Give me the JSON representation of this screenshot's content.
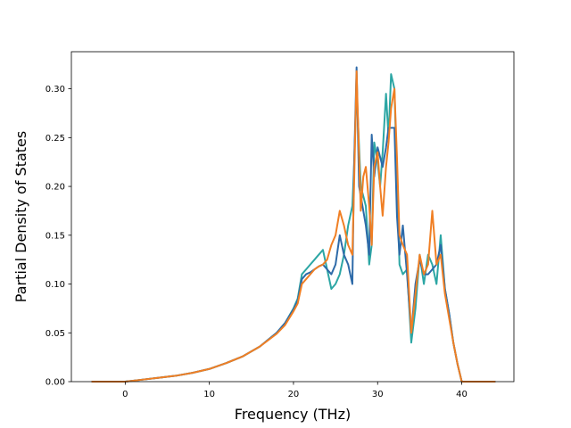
{
  "chart_data": {
    "type": "line",
    "title": "",
    "xlabel": "Frequency (THz)",
    "ylabel": "Partial Density of States",
    "xlim": [
      -6.4,
      46.2
    ],
    "ylim": [
      0.0,
      0.338
    ],
    "xticks": [
      0,
      10,
      20,
      30,
      40
    ],
    "yticks": [
      0.0,
      0.05,
      0.1,
      0.15,
      0.2,
      0.25,
      0.3
    ],
    "ytick_labels": [
      "0.00",
      "0.05",
      "0.10",
      "0.15",
      "0.20",
      "0.25",
      "0.30"
    ],
    "grid": false,
    "legend": "none",
    "series": [
      {
        "color": "#2ca6a4",
        "x": [
          -4,
          0,
          2,
          4,
          6,
          8,
          10,
          12,
          14,
          16,
          18,
          19,
          20,
          20.5,
          21,
          21.5,
          22,
          22.5,
          23,
          23.5,
          24,
          24.5,
          25,
          25.5,
          26,
          26.5,
          27,
          27.2,
          27.5,
          27.8,
          28,
          28.3,
          28.6,
          29,
          29.3,
          29.6,
          30,
          30.3,
          30.6,
          31,
          31.3,
          31.6,
          32,
          32.3,
          32.6,
          33,
          33.5,
          34,
          34.5,
          35,
          35.5,
          36,
          36.5,
          37,
          37.5,
          38,
          38.5,
          39,
          39.5,
          40,
          44
        ],
        "y": [
          0.0,
          0.0,
          0.002,
          0.004,
          0.006,
          0.009,
          0.013,
          0.019,
          0.026,
          0.036,
          0.05,
          0.06,
          0.075,
          0.085,
          0.11,
          0.115,
          0.12,
          0.125,
          0.13,
          0.135,
          0.115,
          0.095,
          0.1,
          0.11,
          0.13,
          0.16,
          0.18,
          0.22,
          0.3,
          0.24,
          0.2,
          0.19,
          0.18,
          0.12,
          0.14,
          0.245,
          0.225,
          0.2,
          0.235,
          0.295,
          0.25,
          0.315,
          0.3,
          0.21,
          0.12,
          0.11,
          0.115,
          0.04,
          0.075,
          0.13,
          0.1,
          0.13,
          0.12,
          0.1,
          0.15,
          0.095,
          0.07,
          0.04,
          0.018,
          0.0,
          0.0
        ]
      },
      {
        "color": "#2e6aa8",
        "x": [
          -4,
          0,
          2,
          4,
          6,
          8,
          10,
          12,
          14,
          16,
          18,
          19,
          20,
          20.5,
          21,
          21.5,
          22,
          22.5,
          23,
          23.5,
          24,
          24.5,
          25,
          25.5,
          26,
          26.5,
          27,
          27.2,
          27.5,
          27.8,
          28,
          28.3,
          28.6,
          29,
          29.3,
          29.6,
          30,
          30.3,
          30.6,
          31,
          31.3,
          31.6,
          32,
          32.3,
          32.6,
          33,
          33.5,
          34,
          34.5,
          35,
          35.5,
          36,
          36.5,
          37,
          37.5,
          38,
          38.5,
          39,
          39.5,
          40,
          44
        ],
        "y": [
          0.0,
          0.0,
          0.002,
          0.004,
          0.006,
          0.009,
          0.013,
          0.019,
          0.026,
          0.036,
          0.05,
          0.06,
          0.074,
          0.083,
          0.105,
          0.11,
          0.112,
          0.115,
          0.118,
          0.12,
          0.115,
          0.11,
          0.12,
          0.15,
          0.13,
          0.12,
          0.1,
          0.22,
          0.322,
          0.2,
          0.19,
          0.175,
          0.16,
          0.13,
          0.253,
          0.21,
          0.24,
          0.23,
          0.22,
          0.24,
          0.26,
          0.26,
          0.26,
          0.17,
          0.13,
          0.16,
          0.11,
          0.05,
          0.1,
          0.125,
          0.11,
          0.11,
          0.115,
          0.12,
          0.14,
          0.095,
          0.07,
          0.04,
          0.018,
          0.0,
          0.0
        ]
      },
      {
        "color": "#f07f24",
        "x": [
          -4,
          0,
          2,
          4,
          6,
          8,
          10,
          12,
          14,
          16,
          18,
          19,
          20,
          20.5,
          21,
          21.5,
          22,
          22.5,
          23,
          23.5,
          24,
          24.5,
          25,
          25.5,
          26,
          26.5,
          27,
          27.2,
          27.5,
          27.8,
          28,
          28.3,
          28.6,
          29,
          29.3,
          29.6,
          30,
          30.3,
          30.6,
          31,
          31.3,
          31.6,
          32,
          32.3,
          32.6,
          33,
          33.5,
          34,
          34.5,
          35,
          35.5,
          36,
          36.5,
          37,
          37.5,
          38,
          38.5,
          39,
          39.5,
          40,
          44
        ],
        "y": [
          0.0,
          0.0,
          0.002,
          0.004,
          0.006,
          0.009,
          0.013,
          0.019,
          0.026,
          0.036,
          0.049,
          0.058,
          0.072,
          0.08,
          0.1,
          0.105,
          0.11,
          0.115,
          0.118,
          0.12,
          0.125,
          0.14,
          0.15,
          0.175,
          0.16,
          0.14,
          0.13,
          0.2,
          0.318,
          0.23,
          0.175,
          0.21,
          0.22,
          0.18,
          0.14,
          0.22,
          0.235,
          0.2,
          0.17,
          0.22,
          0.245,
          0.28,
          0.3,
          0.23,
          0.15,
          0.14,
          0.13,
          0.05,
          0.09,
          0.13,
          0.11,
          0.12,
          0.175,
          0.12,
          0.13,
          0.09,
          0.065,
          0.04,
          0.018,
          0.0,
          0.0
        ]
      }
    ]
  }
}
